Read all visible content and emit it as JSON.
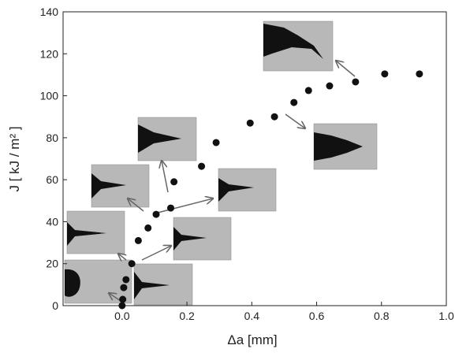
{
  "chart_data": {
    "type": "scatter",
    "x_label": "Δa  [mm]",
    "y_label": "J [ kJ / m² ]",
    "x": [
      0,
      0.002,
      0.005,
      0.012,
      0.03,
      0.05,
      0.08,
      0.105,
      0.15,
      0.16,
      0.245,
      0.29,
      0.395,
      0.47,
      0.53,
      0.575,
      0.64,
      0.72,
      0.81,
      0.917
    ],
    "values": [
      0,
      3,
      8.6,
      12.4,
      20,
      31,
      37,
      43.5,
      46.5,
      59,
      66.4,
      77.7,
      87,
      90,
      96.8,
      102.5,
      104.7,
      106.6,
      110.4,
      110.4
    ],
    "color": "#111111",
    "xlim": [
      -0.182,
      1.0
    ],
    "ylim": [
      0,
      140
    ],
    "xticks": [
      {
        "value": 0,
        "label": "0.0"
      },
      {
        "value": 0.2,
        "label": "0.2"
      },
      {
        "value": 0.4,
        "label": "0.4"
      },
      {
        "value": 0.6,
        "label": "0.6"
      },
      {
        "value": 0.8,
        "label": "0.8"
      },
      {
        "value": 1.0,
        "label": "1.0"
      }
    ],
    "yticks": [
      0,
      20,
      40,
      60,
      80,
      100,
      120,
      140
    ]
  }
}
